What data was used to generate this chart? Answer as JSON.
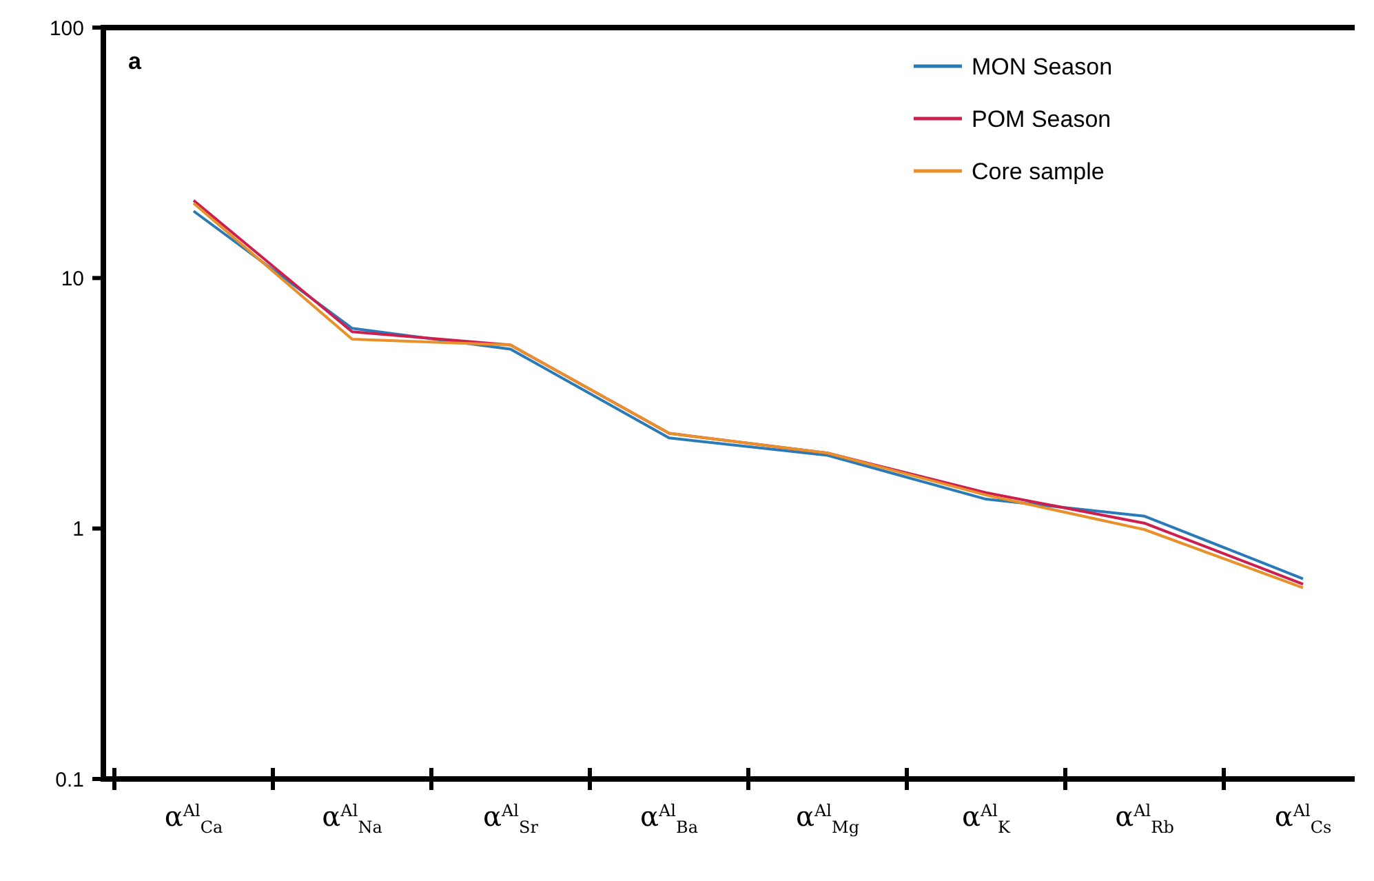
{
  "chart_data": {
    "type": "line",
    "categories": [
      "α$^{Al}$$_{Ca}$",
      "α$^{Al}$$_{Na}$",
      "α$^{Al}$$_{Sr}$",
      "α$^{Al}$$_{Ba}$",
      "α$^{Al}$$_{Mg}$",
      "α$^{Al}$$_{K}$",
      "α$^{Al}$$_{Rb}$",
      "α$^{Al}$$_{Cs}$"
    ],
    "series": [
      {
        "name": "MON Season",
        "color": "#2a7ab8",
        "values": [
          18.5,
          6.3,
          5.2,
          2.3,
          1.96,
          1.31,
          1.12,
          0.63
        ]
      },
      {
        "name": "POM Season",
        "color": "#cc1f4e",
        "values": [
          20.4,
          6.1,
          5.4,
          2.4,
          2.0,
          1.39,
          1.05,
          0.6
        ]
      },
      {
        "name": "Core sample",
        "color": "#e8902a",
        "values": [
          19.9,
          5.7,
          5.4,
          2.4,
          2.0,
          1.36,
          0.99,
          0.58
        ]
      }
    ],
    "log": true,
    "ylim": [
      0.1,
      100
    ],
    "yticks": [
      0.1,
      1,
      10,
      100
    ],
    "grid": false,
    "legend": "top right",
    "marker": "none",
    "line_style": "solid",
    "annotations": [
      "a"
    ]
  }
}
